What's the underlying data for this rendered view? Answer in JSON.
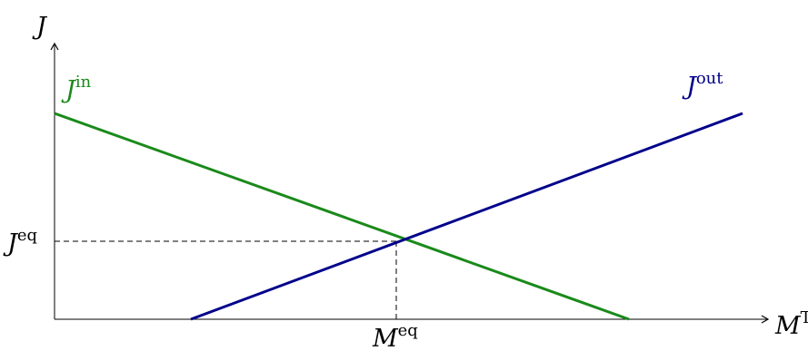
{
  "axes": {
    "y_label": "J",
    "x_label": "M",
    "x_label_sup": "TB"
  },
  "lines": {
    "inflow": {
      "label": "J",
      "label_sup": "in",
      "color": "#1a8a1a"
    },
    "outflow": {
      "label": "J",
      "label_sup": "out",
      "color": "#00008b"
    }
  },
  "equilibrium": {
    "y_label": "J",
    "y_label_sup": "eq",
    "x_label": "M",
    "x_label_sup": "eq"
  },
  "colors": {
    "axis": "#000000",
    "guide": "#000000"
  }
}
